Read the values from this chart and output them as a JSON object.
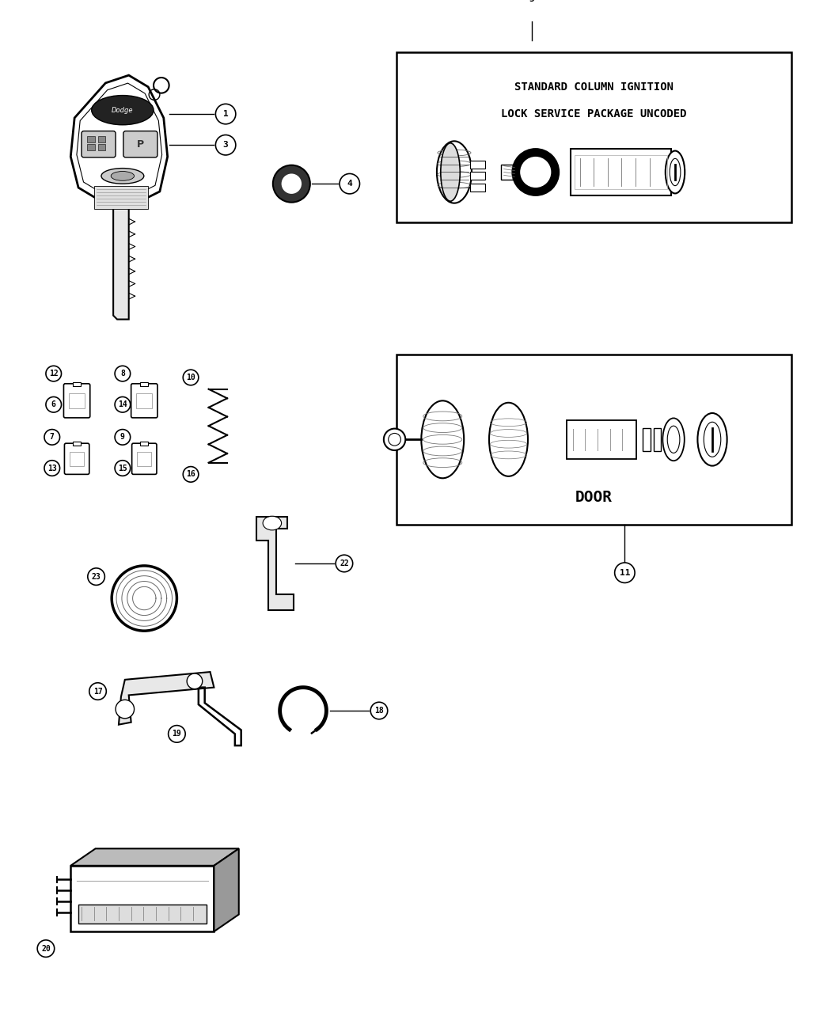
{
  "bg_color": "#ffffff",
  "line_color": "#000000",
  "fig_width": 10.5,
  "fig_height": 12.75,
  "dpi": 100,
  "box1_title_line1": "STANDARD COLUMN IGNITION",
  "box1_title_line2": "LOCK SERVICE PACKAGE UNCODED",
  "box2_label": "DOOR"
}
